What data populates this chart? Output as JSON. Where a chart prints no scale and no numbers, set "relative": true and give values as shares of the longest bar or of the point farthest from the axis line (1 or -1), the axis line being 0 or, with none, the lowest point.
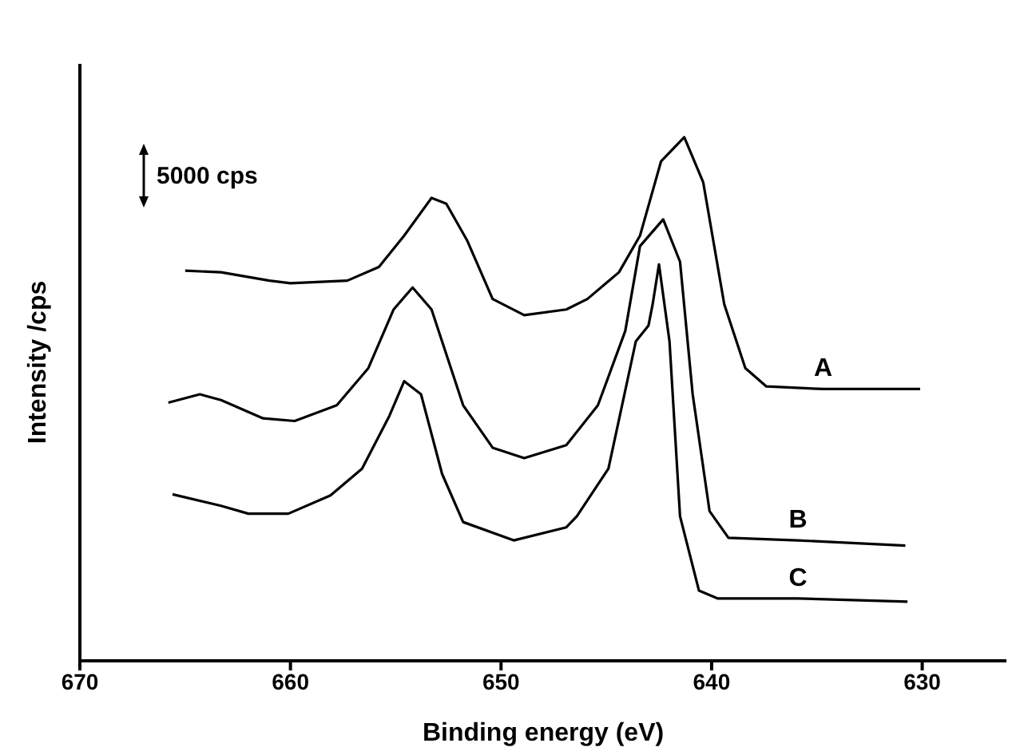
{
  "chart_data": {
    "type": "line",
    "relative": true,
    "xlabel": "Binding energy  (eV)",
    "ylabel": "Intensity /cps",
    "annotations": [
      "5000 cps"
    ],
    "xlim": [
      670,
      626
    ],
    "xticks": [
      670,
      660,
      650,
      640,
      630
    ],
    "legend": false,
    "grid": false,
    "marker": "none",
    "line_style": "solid",
    "series": [
      {
        "name": "A",
        "color": "#000000",
        "x": [
          665.0,
          663.3,
          661.0,
          660.0,
          657.3,
          655.8,
          654.6,
          653.3,
          652.6,
          651.6,
          650.4,
          648.9,
          646.9,
          645.9,
          644.4,
          643.4,
          642.4,
          641.3,
          640.4,
          639.4,
          638.4,
          637.4,
          634.7,
          630.1
        ],
        "values": [
          0.745,
          0.742,
          0.726,
          0.721,
          0.726,
          0.752,
          0.812,
          0.884,
          0.873,
          0.802,
          0.691,
          0.66,
          0.671,
          0.691,
          0.742,
          0.812,
          0.954,
          1.0,
          0.914,
          0.681,
          0.559,
          0.524,
          0.519,
          0.519
        ]
      },
      {
        "name": "B",
        "color": "#000000",
        "x": [
          665.8,
          664.3,
          663.3,
          661.3,
          659.8,
          657.8,
          656.3,
          655.1,
          654.2,
          653.3,
          651.8,
          650.4,
          648.9,
          646.9,
          645.4,
          644.1,
          643.4,
          642.3,
          641.5,
          640.9,
          640.1,
          639.2,
          635.9,
          630.8
        ],
        "values": [
          0.493,
          0.509,
          0.498,
          0.463,
          0.458,
          0.488,
          0.559,
          0.671,
          0.713,
          0.671,
          0.488,
          0.407,
          0.387,
          0.412,
          0.488,
          0.63,
          0.792,
          0.843,
          0.762,
          0.509,
          0.286,
          0.235,
          0.23,
          0.22
        ]
      },
      {
        "name": "C",
        "color": "#000000",
        "x": [
          665.6,
          663.3,
          662.0,
          660.1,
          658.1,
          656.6,
          655.3,
          654.6,
          653.8,
          652.8,
          651.8,
          649.4,
          646.9,
          646.4,
          644.9,
          643.6,
          643.0,
          642.8,
          642.5,
          642.0,
          641.5,
          640.6,
          639.7,
          635.9,
          630.7
        ],
        "values": [
          0.318,
          0.296,
          0.281,
          0.281,
          0.316,
          0.367,
          0.468,
          0.534,
          0.509,
          0.357,
          0.265,
          0.23,
          0.255,
          0.276,
          0.367,
          0.61,
          0.64,
          0.681,
          0.757,
          0.61,
          0.276,
          0.134,
          0.119,
          0.119,
          0.113
        ]
      }
    ]
  }
}
